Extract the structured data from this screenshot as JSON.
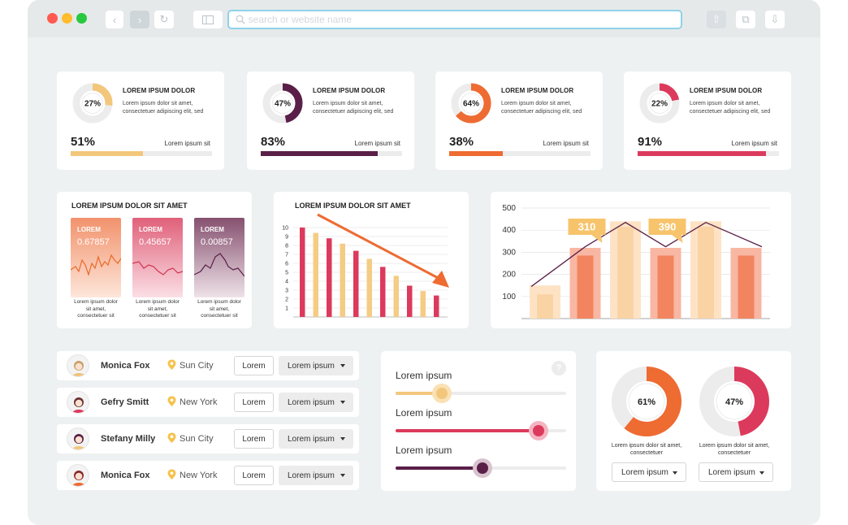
{
  "browser": {
    "search_placeholder": "search or website name",
    "colors": {
      "close": "#ff5a52",
      "minimize": "#ffbd2e",
      "maximize": "#28c840",
      "accent": "#8fd3e8"
    }
  },
  "kpi_cards": [
    {
      "donut_pct": 27,
      "donut_label": "27%",
      "title": "LOREM IPSUM DOLOR",
      "desc": "Lorem ipsum dolor sit amet, consectetuer adipiscing elit, sed",
      "big": "51%",
      "bar_pct": 51,
      "bar_label": "Lorem ipsum sit",
      "color": "#f2c77c"
    },
    {
      "donut_pct": 47,
      "donut_label": "47%",
      "title": "LOREM IPSUM DOLOR",
      "desc": "Lorem ipsum dolor sit amet, consectetuer adipiscing elit, sed",
      "big": "83%",
      "bar_pct": 83,
      "bar_label": "Lorem ipsum sit",
      "color": "#5a1f48"
    },
    {
      "donut_pct": 64,
      "donut_label": "64%",
      "title": "LOREM IPSUM DOLOR",
      "desc": "Lorem ipsum dolor sit amet, consectetuer adipiscing elit, sed",
      "big": "38%",
      "bar_pct": 38,
      "bar_label": "Lorem ipsum sit",
      "color": "#ee6b32"
    },
    {
      "donut_pct": 22,
      "donut_label": "22%",
      "title": "LOREM IPSUM DOLOR",
      "desc": "Lorem ipsum dolor sit amet, consectetuer adipiscing elit, sed",
      "big": "91%",
      "bar_pct": 91,
      "bar_label": "Lorem ipsum sit",
      "color": "#dc3a5c"
    }
  ],
  "minis": {
    "title": "LOREM IPSUM DOLOR SIT AMET",
    "items": [
      {
        "label": "LOREM",
        "value": "0.67857",
        "caption": "Lorem ipsum dolor sit amet, consectetuer sit",
        "top": "#f2926c",
        "bottom": "#fde6da",
        "line": "#e96a2a"
      },
      {
        "label": "LOREM",
        "value": "0.45657",
        "caption": "Lorem ipsum dolor sit amet, consectetuer sit",
        "top": "#e0607a",
        "bottom": "#fbdfe5",
        "line": "#d3304f"
      },
      {
        "label": "LOREM",
        "value": "0.00857",
        "caption": "Lorem ipsum dolor sit amet, consectetuer sit",
        "top": "#86506f",
        "bottom": "#eee2e8",
        "line": "#5a1f48"
      }
    ]
  },
  "chart_data": [
    {
      "type": "bar",
      "title": "LOREM IPSUM DOLOR SIT AMET",
      "ylim": [
        0,
        10
      ],
      "y_ticks": [
        "1",
        "2",
        "3",
        "4",
        "5",
        "6",
        "7",
        "8",
        "9",
        "10"
      ],
      "values": [
        10,
        9.4,
        8.8,
        8.2,
        7.4,
        6.5,
        5.6,
        4.6,
        3.5,
        2.9,
        2.4
      ],
      "colors": [
        "#dc3a5c",
        "#f5cc85",
        "#dc3a5c",
        "#f5cc85",
        "#dc3a5c",
        "#f5cc85",
        "#dc3a5c",
        "#f5cc85",
        "#dc3a5c",
        "#f5cc85",
        "#dc3a5c"
      ],
      "trend_color": "#ee6b32",
      "grid": true
    },
    {
      "type": "bar",
      "ylim": [
        0,
        500
      ],
      "y_ticks": [
        "100",
        "200",
        "300",
        "400",
        "500"
      ],
      "series": [
        {
          "values": [
            150,
            320,
            440,
            320,
            440,
            320
          ]
        },
        {
          "values": [
            110,
            285,
            415,
            285,
            415,
            285
          ]
        },
        {
          "values": [
            145,
            325,
            435,
            325,
            435,
            325
          ]
        }
      ],
      "bar_colors": [
        [
          "#fde3c4",
          "#f8b7a3",
          "#fde3c4",
          "#f8b7a3",
          "#fde3c4",
          "#f8b7a3"
        ],
        [
          "#fad3a5",
          "#f2855f",
          "#fad3a5",
          "#f2855f",
          "#fad3a5",
          "#f2855f"
        ]
      ],
      "line_color": "#5a1f48",
      "callouts": [
        {
          "text": "310",
          "index": 1
        },
        {
          "text": "390",
          "index": 3
        }
      ],
      "callout_color": "#f7c46c",
      "grid": true
    }
  ],
  "people": [
    {
      "name": "Monica Fox",
      "city": "Sun City",
      "button": "Lorem",
      "select": "Lorem ipsum",
      "hair": "#c9a06a",
      "shirt": "#f0c27a"
    },
    {
      "name": "Gefry Smitt",
      "city": "New York",
      "button": "Lorem",
      "select": "Lorem ipsum",
      "hair": "#6b3030",
      "shirt": "#dc3a5c"
    },
    {
      "name": "Stefany Milly",
      "city": "Sun City",
      "button": "Lorem",
      "select": "Lorem ipsum",
      "hair": "#5a1f48",
      "shirt": "#f2c77c"
    },
    {
      "name": "Monica Fox",
      "city": "New York",
      "button": "Lorem",
      "select": "Lorem ipsum",
      "hair": "#8a2a2a",
      "shirt": "#ee6b32"
    }
  ],
  "sliders": {
    "help": "?",
    "items": [
      {
        "label": "Lorem ipsum",
        "value": 27,
        "color": "#f2c77c",
        "halo": "#f9e1b4"
      },
      {
        "label": "Lorem ipsum",
        "value": 84,
        "color": "#dc3a5c",
        "halo": "#f4b4c1"
      },
      {
        "label": "Lorem ipsum",
        "value": 51,
        "color": "#5a1f48",
        "halo": "#d9c3cf"
      }
    ]
  },
  "big_donuts": [
    {
      "pct": 61,
      "label": "61%",
      "caption": "Lorem ipsum dolor sit amet, consectetuer",
      "select": "Lorem ipsum",
      "color": "#ee6b32"
    },
    {
      "pct": 47,
      "label": "47%",
      "caption": "Lorem ipsum dolor sit amet, consectetuer",
      "select": "Lorem ipsum",
      "color": "#dc3a5c"
    }
  ]
}
